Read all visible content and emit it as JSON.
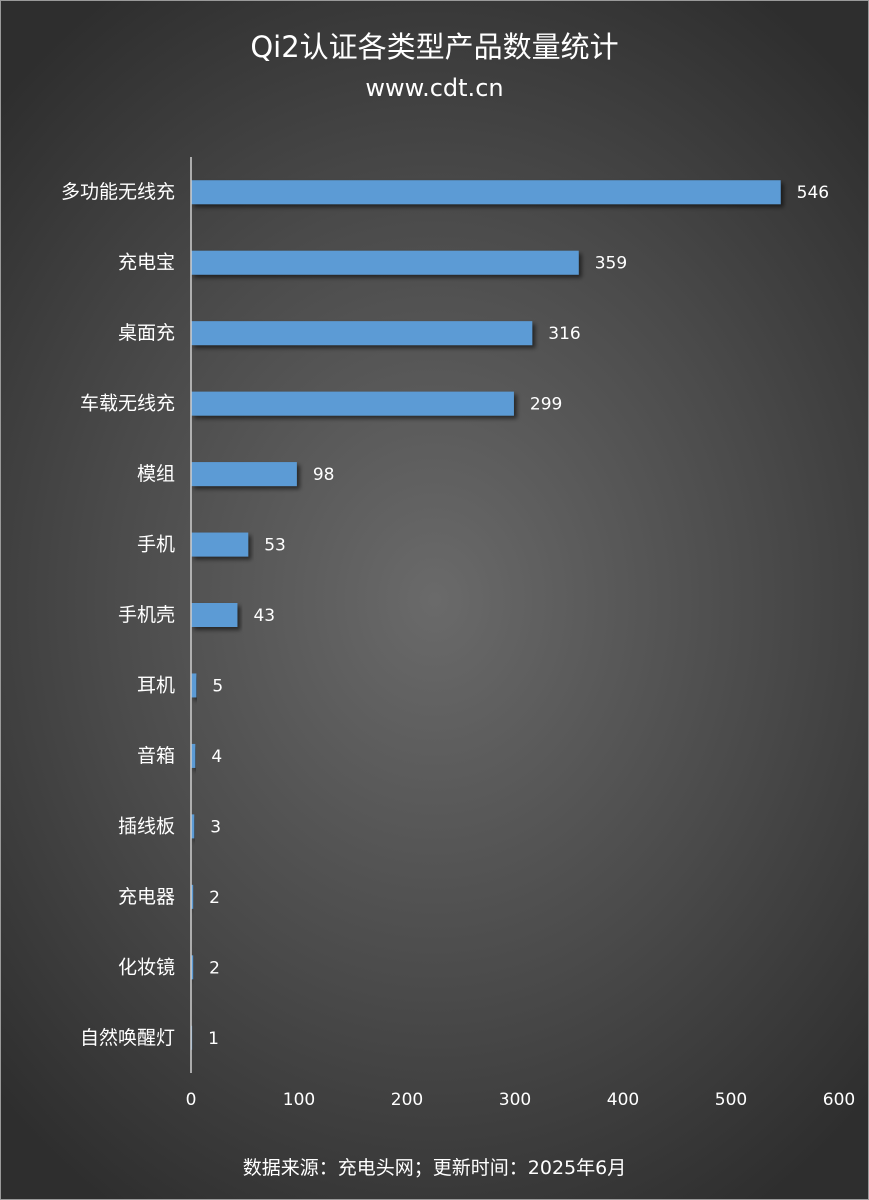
{
  "title": "Qi2认证各类型产品数量统计",
  "subtitle": "www.cdt.cn",
  "footer": "数据来源：充电头网；更新时间：2025年6月",
  "chart_data": {
    "type": "bar",
    "orientation": "horizontal",
    "categories": [
      "多功能无线充",
      "充电宝",
      "桌面充",
      "车载无线充",
      "模组",
      "手机",
      "手机壳",
      "耳机",
      "音箱",
      "插线板",
      "充电器",
      "化妆镜",
      "自然唤醒灯"
    ],
    "values": [
      546,
      359,
      316,
      299,
      98,
      53,
      43,
      5,
      4,
      3,
      2,
      2,
      1
    ],
    "xlim": [
      0,
      600
    ],
    "xticks": [
      0,
      100,
      200,
      300,
      400,
      500,
      600
    ],
    "grid": false,
    "data_labels": true,
    "bar_color": "#5b9bd5",
    "text_color": "#ffffff"
  }
}
